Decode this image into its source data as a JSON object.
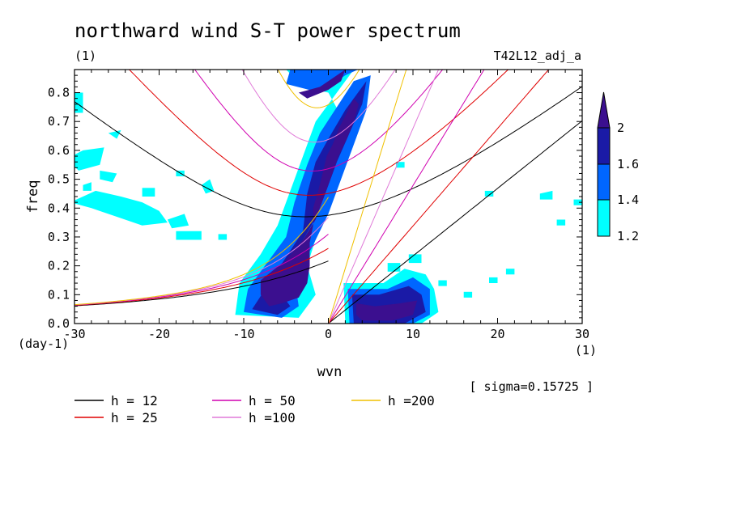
{
  "chart_data": {
    "type": "heatmap",
    "title": "northward wind S-T power spectrum",
    "subtitle_left": "(1)",
    "subtitle_right": "T42L12_adj_a",
    "xlabel": "wvn",
    "ylabel": "freq",
    "x_unit": "(1)",
    "y_unit": "(day-1)",
    "xlim": [
      -30,
      30
    ],
    "ylim": [
      0,
      0.88
    ],
    "x_ticks": [
      "-30",
      "-20",
      "-10",
      "0",
      "10",
      "20",
      "30"
    ],
    "y_ticks": [
      "0.0",
      "0.1",
      "0.2",
      "0.3",
      "0.4",
      "0.5",
      "0.6",
      "0.7",
      "0.8"
    ],
    "note": "[ sigma=0.15725 ]",
    "colorbar": {
      "levels": [
        1.2,
        1.4,
        1.6,
        2
      ],
      "labels": [
        "1.2",
        "1.4",
        "1.6",
        "2"
      ],
      "colors": [
        "#00ffff",
        "#0066ff",
        "#1a1aa6",
        "#3b0f8f"
      ]
    },
    "series": [
      {
        "name": "h = 12",
        "h": 12,
        "color": "#000000"
      },
      {
        "name": "h = 25",
        "h": 25,
        "color": "#e00000"
      },
      {
        "name": "h = 50",
        "h": 50,
        "color": "#d000b0"
      },
      {
        "name": "h =100",
        "h": 100,
        "color": "#e07ad8"
      },
      {
        "name": "h =200",
        "h": 200,
        "color": "#f0c000"
      }
    ],
    "regions": [
      {
        "level": 2,
        "points": [
          [
            -5.5,
            0.07
          ],
          [
            -3.5,
            0.09
          ],
          [
            -2.5,
            0.14
          ],
          [
            -2.2,
            0.2
          ],
          [
            -2.2,
            0.28
          ],
          [
            -1.8,
            0.34
          ],
          [
            -1.8,
            0.4
          ],
          [
            -1.2,
            0.46
          ],
          [
            -0.6,
            0.53
          ],
          [
            -0.2,
            0.58
          ],
          [
            0.5,
            0.62
          ],
          [
            1.3,
            0.68
          ],
          [
            2.0,
            0.72
          ],
          [
            3.0,
            0.78
          ],
          [
            3.6,
            0.76
          ],
          [
            3.0,
            0.7
          ],
          [
            2.2,
            0.64
          ],
          [
            1.2,
            0.58
          ],
          [
            0.5,
            0.52
          ],
          [
            -0.5,
            0.44
          ],
          [
            -1.5,
            0.36
          ],
          [
            -3.0,
            0.29
          ],
          [
            -5.0,
            0.22
          ],
          [
            -8.0,
            0.15
          ],
          [
            -8.0,
            0.1
          ],
          [
            -7.0,
            0.06
          ]
        ]
      },
      {
        "level": 2,
        "points": [
          [
            -3.5,
            0.8
          ],
          [
            -1.0,
            0.82
          ],
          [
            1.0,
            0.86
          ],
          [
            2.0,
            0.88
          ],
          [
            1.5,
            0.84
          ],
          [
            0,
            0.81
          ],
          [
            -2.5,
            0.78
          ]
        ]
      },
      {
        "level": 2,
        "points": [
          [
            3.3,
            0.07
          ],
          [
            5.5,
            0.06
          ],
          [
            8.5,
            0.07
          ],
          [
            10.5,
            0.08
          ],
          [
            10.0,
            0.03
          ],
          [
            7.5,
            0.01
          ],
          [
            4.0,
            0.01
          ],
          [
            3.3,
            0.03
          ]
        ]
      },
      {
        "level": 1.6,
        "points": [
          [
            -9.0,
            0.05
          ],
          [
            -7.0,
            0.14
          ],
          [
            -5.0,
            0.23
          ],
          [
            -3.0,
            0.32
          ],
          [
            -2.5,
            0.45
          ],
          [
            -1.5,
            0.56
          ],
          [
            0.0,
            0.64
          ],
          [
            2.0,
            0.74
          ],
          [
            4.0,
            0.82
          ],
          [
            4.5,
            0.84
          ],
          [
            4.0,
            0.76
          ],
          [
            2.5,
            0.66
          ],
          [
            1.0,
            0.56
          ],
          [
            -0.5,
            0.44
          ],
          [
            -2.0,
            0.34
          ],
          [
            -4.0,
            0.24
          ],
          [
            -6.5,
            0.14
          ],
          [
            -4.5,
            0.06
          ],
          [
            -6.0,
            0.03
          ]
        ]
      },
      {
        "level": 1.6,
        "points": [
          [
            2.8,
            0.1
          ],
          [
            6.0,
            0.1
          ],
          [
            9.5,
            0.13
          ],
          [
            11.0,
            0.1
          ],
          [
            11.5,
            0.04
          ],
          [
            9.0,
            0.0
          ],
          [
            3.0,
            0.0
          ]
        ]
      },
      {
        "level": 1.4,
        "points": [
          [
            -10.0,
            0.04
          ],
          [
            -9.5,
            0.12
          ],
          [
            -7.5,
            0.2
          ],
          [
            -5.0,
            0.3
          ],
          [
            -4.0,
            0.42
          ],
          [
            -2.5,
            0.55
          ],
          [
            -1.0,
            0.66
          ],
          [
            1.0,
            0.75
          ],
          [
            3.0,
            0.84
          ],
          [
            5.0,
            0.86
          ],
          [
            4.5,
            0.74
          ],
          [
            3.0,
            0.62
          ],
          [
            1.5,
            0.5
          ],
          [
            0.0,
            0.38
          ],
          [
            -2.0,
            0.26
          ],
          [
            -4.0,
            0.16
          ],
          [
            -3.5,
            0.06
          ],
          [
            -5.5,
            0.02
          ]
        ]
      },
      {
        "level": 1.4,
        "points": [
          [
            -5.0,
            0.83
          ],
          [
            -1.0,
            0.8
          ],
          [
            2.0,
            0.86
          ],
          [
            3.5,
            0.88
          ],
          [
            -4.5,
            0.88
          ]
        ]
      },
      {
        "level": 1.4,
        "points": [
          [
            2.3,
            0.12
          ],
          [
            7.0,
            0.12
          ],
          [
            10.0,
            0.16
          ],
          [
            12.0,
            0.12
          ],
          [
            12.0,
            0.03
          ],
          [
            10.0,
            0.0
          ],
          [
            2.5,
            0.0
          ]
        ]
      },
      {
        "level": 1.2,
        "points": [
          [
            -11.0,
            0.03
          ],
          [
            -10.5,
            0.14
          ],
          [
            -8.0,
            0.24
          ],
          [
            -6.0,
            0.34
          ],
          [
            -4.5,
            0.46
          ],
          [
            -3.0,
            0.58
          ],
          [
            -1.5,
            0.7
          ],
          [
            1.0,
            0.8
          ],
          [
            3.0,
            0.88
          ],
          [
            -5.0,
            0.88
          ],
          [
            -3.0,
            0.82
          ],
          [
            0,
            0.8
          ],
          [
            1.5,
            0.72
          ],
          [
            -0.5,
            0.6
          ],
          [
            -1.0,
            0.48
          ],
          [
            -1.0,
            0.34
          ],
          [
            -2.5,
            0.2
          ],
          [
            -1.5,
            0.1
          ],
          [
            -3.5,
            0.02
          ]
        ]
      },
      {
        "level": 1.2,
        "points": [
          [
            1.8,
            0.14
          ],
          [
            6.5,
            0.14
          ],
          [
            9.0,
            0.19
          ],
          [
            11.5,
            0.17
          ],
          [
            12.5,
            0.12
          ],
          [
            13.0,
            0.04
          ],
          [
            11.0,
            0.0
          ],
          [
            2.0,
            0.0
          ]
        ]
      },
      {
        "level": 1.2,
        "points": [
          [
            -30.5,
            0.42
          ],
          [
            -27.5,
            0.46
          ],
          [
            -24.5,
            0.44
          ],
          [
            -22.0,
            0.42
          ],
          [
            -20.0,
            0.39
          ],
          [
            -19.0,
            0.35
          ],
          [
            -22.0,
            0.34
          ],
          [
            -25.0,
            0.37
          ],
          [
            -28.0,
            0.4
          ]
        ]
      },
      {
        "level": 1.2,
        "points": [
          [
            -31.0,
            0.57
          ],
          [
            -29.0,
            0.6
          ],
          [
            -26.5,
            0.61
          ],
          [
            -27.0,
            0.55
          ],
          [
            -29.5,
            0.53
          ]
        ]
      },
      {
        "level": 1.2,
        "points": [
          [
            -26.0,
            0.66
          ],
          [
            -24.5,
            0.67
          ],
          [
            -25.0,
            0.64
          ]
        ]
      },
      {
        "level": 1.2,
        "points": [
          [
            -31.0,
            0.8
          ],
          [
            -29.0,
            0.8
          ],
          [
            -29.0,
            0.73
          ],
          [
            -31.0,
            0.73
          ]
        ]
      },
      {
        "level": 1.2,
        "points": [
          [
            -19.0,
            0.36
          ],
          [
            -17.0,
            0.38
          ],
          [
            -16.5,
            0.34
          ],
          [
            -18.5,
            0.33
          ]
        ]
      },
      {
        "level": 1.2,
        "points": [
          [
            -18.0,
            0.32
          ],
          [
            -15.0,
            0.32
          ],
          [
            -15.0,
            0.29
          ],
          [
            -18.0,
            0.29
          ]
        ]
      },
      {
        "level": 1.2,
        "points": [
          [
            -13.0,
            0.31
          ],
          [
            -12.0,
            0.31
          ],
          [
            -12.0,
            0.29
          ],
          [
            -13.0,
            0.29
          ]
        ]
      },
      {
        "level": 1.2,
        "points": [
          [
            -15.0,
            0.48
          ],
          [
            -14.0,
            0.5
          ],
          [
            -13.5,
            0.46
          ],
          [
            -14.5,
            0.45
          ]
        ]
      },
      {
        "level": 1.2,
        "points": [
          [
            -27.0,
            0.53
          ],
          [
            -25.0,
            0.52
          ],
          [
            -25.5,
            0.49
          ],
          [
            -27.0,
            0.5
          ]
        ]
      },
      {
        "level": 1.2,
        "points": [
          [
            -18.0,
            0.53
          ],
          [
            -17.0,
            0.53
          ],
          [
            -17.0,
            0.51
          ],
          [
            -18.0,
            0.51
          ]
        ]
      },
      {
        "level": 1.2,
        "points": [
          [
            -22.0,
            0.47
          ],
          [
            -20.5,
            0.47
          ],
          [
            -20.5,
            0.44
          ],
          [
            -22.0,
            0.44
          ]
        ]
      },
      {
        "level": 1.2,
        "points": [
          [
            -29.0,
            0.48
          ],
          [
            -28.0,
            0.49
          ],
          [
            -28.0,
            0.46
          ],
          [
            -29.0,
            0.46
          ]
        ]
      },
      {
        "level": 1.2,
        "points": [
          [
            7.0,
            0.21
          ],
          [
            8.5,
            0.21
          ],
          [
            8.5,
            0.18
          ],
          [
            7.0,
            0.18
          ]
        ]
      },
      {
        "level": 1.2,
        "points": [
          [
            9.5,
            0.24
          ],
          [
            11.0,
            0.24
          ],
          [
            11.0,
            0.21
          ],
          [
            9.5,
            0.21
          ]
        ]
      },
      {
        "level": 1.2,
        "points": [
          [
            13.0,
            0.15
          ],
          [
            14.0,
            0.15
          ],
          [
            14.0,
            0.13
          ],
          [
            13.0,
            0.13
          ]
        ]
      },
      {
        "level": 1.2,
        "points": [
          [
            16.0,
            0.11
          ],
          [
            17.0,
            0.11
          ],
          [
            17.0,
            0.09
          ],
          [
            16.0,
            0.09
          ]
        ]
      },
      {
        "level": 1.2,
        "points": [
          [
            19.0,
            0.16
          ],
          [
            20.0,
            0.16
          ],
          [
            20.0,
            0.14
          ],
          [
            19.0,
            0.14
          ]
        ]
      },
      {
        "level": 1.2,
        "points": [
          [
            21.0,
            0.19
          ],
          [
            22.0,
            0.19
          ],
          [
            22.0,
            0.17
          ],
          [
            21.0,
            0.17
          ]
        ]
      },
      {
        "level": 1.2,
        "points": [
          [
            18.5,
            0.46
          ],
          [
            19.5,
            0.46
          ],
          [
            19.5,
            0.44
          ],
          [
            18.5,
            0.44
          ]
        ]
      },
      {
        "level": 1.2,
        "points": [
          [
            25.0,
            0.45
          ],
          [
            26.5,
            0.46
          ],
          [
            26.5,
            0.43
          ],
          [
            25.0,
            0.43
          ]
        ]
      },
      {
        "level": 1.2,
        "points": [
          [
            27.0,
            0.36
          ],
          [
            28.0,
            0.36
          ],
          [
            28.0,
            0.34
          ],
          [
            27.0,
            0.34
          ]
        ]
      },
      {
        "level": 1.2,
        "points": [
          [
            29.0,
            0.43
          ],
          [
            30.0,
            0.43
          ],
          [
            30.0,
            0.41
          ],
          [
            29.0,
            0.41
          ]
        ]
      },
      {
        "level": 1.2,
        "points": [
          [
            8.0,
            0.56
          ],
          [
            9.0,
            0.56
          ],
          [
            9.0,
            0.54
          ],
          [
            8.0,
            0.54
          ]
        ]
      }
    ]
  }
}
